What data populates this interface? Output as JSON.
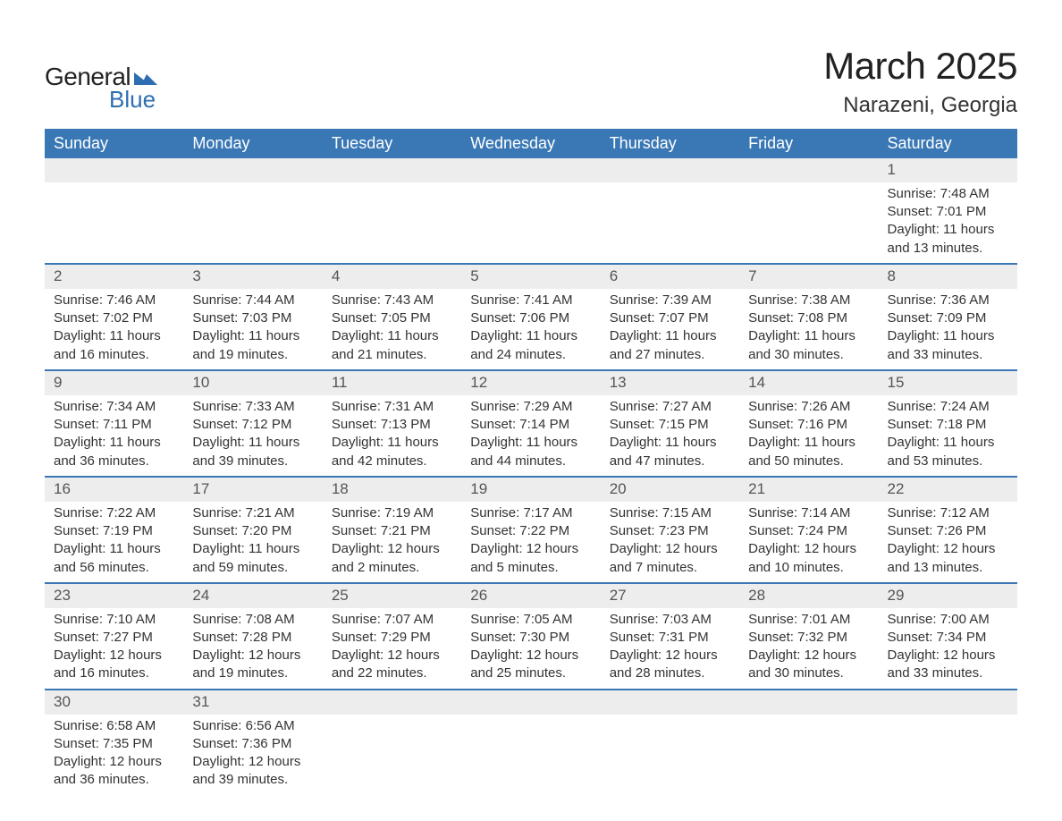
{
  "brand": {
    "word1": "General",
    "word2": "Blue",
    "logo_color": "#2e6eb0",
    "text_color": "#222222"
  },
  "header": {
    "title": "March 2025",
    "location": "Narazeni, Georgia"
  },
  "style": {
    "header_bg": "#3a78b5",
    "header_fg": "#ffffff",
    "row_border": "#3a78b5",
    "daynum_bg": "#ededed",
    "daynum_fg": "#555555",
    "body_fg": "#333333",
    "page_bg": "#ffffff",
    "title_fontsize": 42,
    "location_fontsize": 24,
    "th_fontsize": 18,
    "cell_fontsize": 15
  },
  "weekdays": [
    "Sunday",
    "Monday",
    "Tuesday",
    "Wednesday",
    "Thursday",
    "Friday",
    "Saturday"
  ],
  "labels": {
    "sunrise": "Sunrise:",
    "sunset": "Sunset:",
    "daylight": "Daylight:"
  },
  "weeks": [
    [
      null,
      null,
      null,
      null,
      null,
      null,
      {
        "n": "1",
        "sr": "7:48 AM",
        "ss": "7:01 PM",
        "dl": "11 hours and 13 minutes."
      }
    ],
    [
      {
        "n": "2",
        "sr": "7:46 AM",
        "ss": "7:02 PM",
        "dl": "11 hours and 16 minutes."
      },
      {
        "n": "3",
        "sr": "7:44 AM",
        "ss": "7:03 PM",
        "dl": "11 hours and 19 minutes."
      },
      {
        "n": "4",
        "sr": "7:43 AM",
        "ss": "7:05 PM",
        "dl": "11 hours and 21 minutes."
      },
      {
        "n": "5",
        "sr": "7:41 AM",
        "ss": "7:06 PM",
        "dl": "11 hours and 24 minutes."
      },
      {
        "n": "6",
        "sr": "7:39 AM",
        "ss": "7:07 PM",
        "dl": "11 hours and 27 minutes."
      },
      {
        "n": "7",
        "sr": "7:38 AM",
        "ss": "7:08 PM",
        "dl": "11 hours and 30 minutes."
      },
      {
        "n": "8",
        "sr": "7:36 AM",
        "ss": "7:09 PM",
        "dl": "11 hours and 33 minutes."
      }
    ],
    [
      {
        "n": "9",
        "sr": "7:34 AM",
        "ss": "7:11 PM",
        "dl": "11 hours and 36 minutes."
      },
      {
        "n": "10",
        "sr": "7:33 AM",
        "ss": "7:12 PM",
        "dl": "11 hours and 39 minutes."
      },
      {
        "n": "11",
        "sr": "7:31 AM",
        "ss": "7:13 PM",
        "dl": "11 hours and 42 minutes."
      },
      {
        "n": "12",
        "sr": "7:29 AM",
        "ss": "7:14 PM",
        "dl": "11 hours and 44 minutes."
      },
      {
        "n": "13",
        "sr": "7:27 AM",
        "ss": "7:15 PM",
        "dl": "11 hours and 47 minutes."
      },
      {
        "n": "14",
        "sr": "7:26 AM",
        "ss": "7:16 PM",
        "dl": "11 hours and 50 minutes."
      },
      {
        "n": "15",
        "sr": "7:24 AM",
        "ss": "7:18 PM",
        "dl": "11 hours and 53 minutes."
      }
    ],
    [
      {
        "n": "16",
        "sr": "7:22 AM",
        "ss": "7:19 PM",
        "dl": "11 hours and 56 minutes."
      },
      {
        "n": "17",
        "sr": "7:21 AM",
        "ss": "7:20 PM",
        "dl": "11 hours and 59 minutes."
      },
      {
        "n": "18",
        "sr": "7:19 AM",
        "ss": "7:21 PM",
        "dl": "12 hours and 2 minutes."
      },
      {
        "n": "19",
        "sr": "7:17 AM",
        "ss": "7:22 PM",
        "dl": "12 hours and 5 minutes."
      },
      {
        "n": "20",
        "sr": "7:15 AM",
        "ss": "7:23 PM",
        "dl": "12 hours and 7 minutes."
      },
      {
        "n": "21",
        "sr": "7:14 AM",
        "ss": "7:24 PM",
        "dl": "12 hours and 10 minutes."
      },
      {
        "n": "22",
        "sr": "7:12 AM",
        "ss": "7:26 PM",
        "dl": "12 hours and 13 minutes."
      }
    ],
    [
      {
        "n": "23",
        "sr": "7:10 AM",
        "ss": "7:27 PM",
        "dl": "12 hours and 16 minutes."
      },
      {
        "n": "24",
        "sr": "7:08 AM",
        "ss": "7:28 PM",
        "dl": "12 hours and 19 minutes."
      },
      {
        "n": "25",
        "sr": "7:07 AM",
        "ss": "7:29 PM",
        "dl": "12 hours and 22 minutes."
      },
      {
        "n": "26",
        "sr": "7:05 AM",
        "ss": "7:30 PM",
        "dl": "12 hours and 25 minutes."
      },
      {
        "n": "27",
        "sr": "7:03 AM",
        "ss": "7:31 PM",
        "dl": "12 hours and 28 minutes."
      },
      {
        "n": "28",
        "sr": "7:01 AM",
        "ss": "7:32 PM",
        "dl": "12 hours and 30 minutes."
      },
      {
        "n": "29",
        "sr": "7:00 AM",
        "ss": "7:34 PM",
        "dl": "12 hours and 33 minutes."
      }
    ],
    [
      {
        "n": "30",
        "sr": "6:58 AM",
        "ss": "7:35 PM",
        "dl": "12 hours and 36 minutes."
      },
      {
        "n": "31",
        "sr": "6:56 AM",
        "ss": "7:36 PM",
        "dl": "12 hours and 39 minutes."
      },
      null,
      null,
      null,
      null,
      null
    ]
  ]
}
